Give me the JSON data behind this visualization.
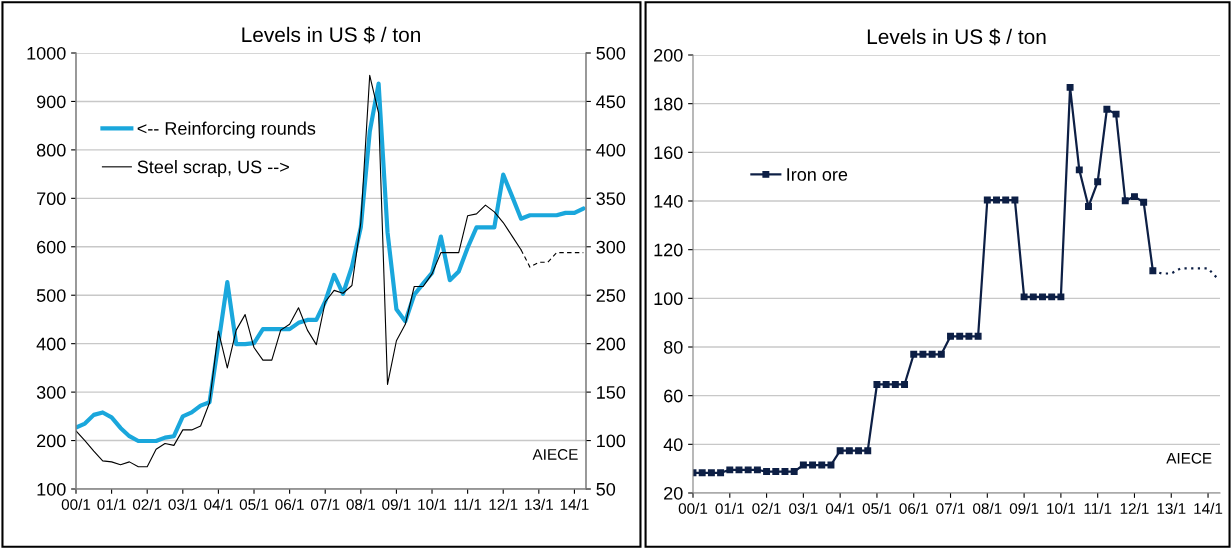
{
  "chart_data": [
    {
      "type": "line",
      "title": "Levels in US $ / ton",
      "categories": [
        "00/1",
        null,
        null,
        null,
        "01/1",
        null,
        null,
        null,
        "02/1",
        null,
        null,
        null,
        "03/1",
        null,
        null,
        null,
        "04/1",
        null,
        null,
        null,
        "05/1",
        null,
        null,
        null,
        "06/1",
        null,
        null,
        null,
        "07/1",
        null,
        null,
        null,
        "08/1",
        null,
        null,
        null,
        "09/1",
        null,
        null,
        null,
        "10/1",
        null,
        null,
        null,
        "11/1",
        null,
        null,
        null,
        "12/1",
        null,
        null,
        null,
        "13/1",
        null,
        null,
        null,
        "14/1",
        null
      ],
      "series": [
        {
          "name": "<-- Reinforcing rounds",
          "color": "#1aa7dc",
          "values": [
            227,
            235,
            253,
            258,
            248,
            226,
            209,
            199,
            199,
            199,
            206,
            209,
            250,
            258,
            272,
            279,
            400,
            527,
            399,
            399,
            401,
            430,
            430,
            430,
            430,
            443,
            449,
            449,
            487,
            542,
            503,
            559,
            640,
            837,
            937,
            630,
            471,
            446,
            501,
            524,
            546,
            621,
            531,
            549,
            598,
            640,
            640,
            640,
            749,
            704,
            658,
            665,
            665,
            665,
            665,
            670,
            670,
            679
          ]
        },
        {
          "name": "Steel scrap, US -->",
          "color": "#000000",
          "axis": "y2",
          "values": [
            110,
            100,
            89,
            79,
            78,
            75,
            78,
            73,
            73,
            91,
            97,
            95,
            111,
            111,
            115,
            139,
            213,
            175,
            214,
            230,
            196,
            183,
            183,
            214,
            220,
            237,
            214,
            199,
            243,
            255,
            252,
            260,
            325,
            477,
            438,
            158,
            203,
            220,
            259,
            259,
            272,
            294,
            294,
            294,
            332,
            334,
            343,
            336,
            325,
            311,
            297,
            null,
            null,
            null,
            null,
            null,
            null,
            null
          ]
        },
        {
          "color": "#000000",
          "axis": "y2",
          "line_style": "dashed",
          "values": [
            null,
            null,
            null,
            null,
            null,
            null,
            null,
            null,
            null,
            null,
            null,
            null,
            null,
            null,
            null,
            null,
            null,
            null,
            null,
            null,
            null,
            null,
            null,
            null,
            null,
            null,
            null,
            null,
            null,
            null,
            null,
            null,
            null,
            null,
            null,
            null,
            null,
            null,
            null,
            null,
            null,
            null,
            null,
            null,
            null,
            null,
            null,
            null,
            null,
            null,
            297,
            279,
            284,
            284,
            294,
            294,
            294,
            294
          ]
        }
      ],
      "ylim": [
        100,
        1000
      ],
      "yticks": [
        100,
        200,
        300,
        400,
        500,
        600,
        700,
        800,
        900,
        1000
      ],
      "y2lim": [
        50,
        500
      ],
      "y2ticks": [
        50,
        100,
        150,
        200,
        250,
        300,
        350,
        400,
        450,
        500
      ],
      "grid": "y",
      "legend": "top left",
      "annotations": [
        "AIECE"
      ]
    },
    {
      "type": "line",
      "title": "Levels in US $ / ton",
      "categories": [
        "00/1",
        null,
        null,
        null,
        "01/1",
        null,
        null,
        null,
        "02/1",
        null,
        null,
        null,
        "03/1",
        null,
        null,
        null,
        "04/1",
        null,
        null,
        null,
        "05/1",
        null,
        null,
        null,
        "06/1",
        null,
        null,
        null,
        "07/1",
        null,
        null,
        null,
        "08/1",
        null,
        null,
        null,
        "09/1",
        null,
        null,
        null,
        "10/1",
        null,
        null,
        null,
        "11/1",
        null,
        null,
        null,
        "12/1",
        null,
        null,
        null,
        "13/1",
        null,
        null,
        null,
        "14/1",
        null
      ],
      "series": [
        {
          "name": "Iron ore",
          "color": "#0d1f45",
          "marker": "square",
          "values": [
            28.3,
            28.3,
            28.3,
            28.3,
            29.5,
            29.5,
            29.5,
            29.5,
            28.8,
            28.8,
            28.8,
            28.8,
            31.5,
            31.5,
            31.5,
            31.5,
            37.4,
            37.4,
            37.4,
            37.4,
            64.6,
            64.6,
            64.6,
            64.6,
            77.0,
            77.0,
            77.0,
            77.0,
            84.4,
            84.4,
            84.4,
            84.4,
            140.4,
            140.4,
            140.4,
            140.4,
            100.6,
            100.6,
            100.6,
            100.6,
            100.6,
            186.7,
            152.8,
            137.7,
            147.9,
            177.7,
            175.7,
            140.1,
            141.8,
            139.5,
            111.3,
            null,
            null,
            null,
            null,
            null,
            null,
            null
          ]
        },
        {
          "color": "#0d1f45",
          "line_style": "dotted",
          "values": [
            null,
            null,
            null,
            null,
            null,
            null,
            null,
            null,
            null,
            null,
            null,
            null,
            null,
            null,
            null,
            null,
            null,
            null,
            null,
            null,
            null,
            null,
            null,
            null,
            null,
            null,
            null,
            null,
            null,
            null,
            null,
            null,
            null,
            null,
            null,
            null,
            null,
            null,
            null,
            null,
            null,
            null,
            null,
            null,
            null,
            null,
            null,
            null,
            null,
            null,
            111.3,
            110.2,
            110.2,
            112.3,
            112.3,
            112.3,
            112.3,
            108.3
          ]
        }
      ],
      "ylim": [
        20,
        200
      ],
      "yticks": [
        20,
        40,
        60,
        80,
        100,
        120,
        140,
        160,
        180,
        200
      ],
      "grid": "y",
      "legend": "top left",
      "annotations": [
        "AIECE"
      ]
    }
  ]
}
